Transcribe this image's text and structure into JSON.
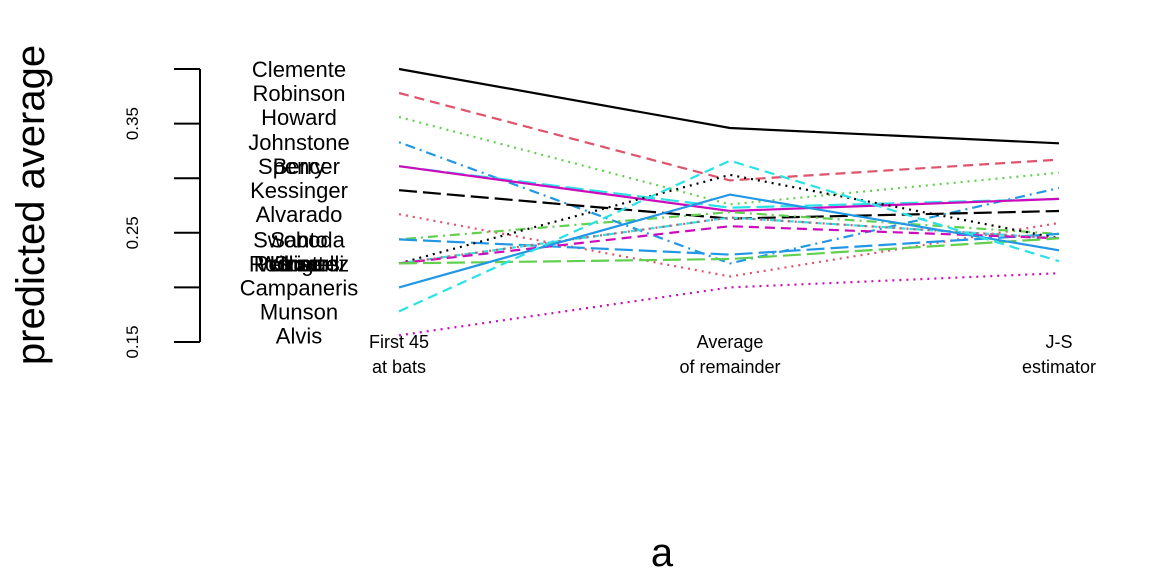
{
  "chart_data": {
    "type": "line",
    "title": "",
    "xlabel": "a",
    "ylabel": "predicted average",
    "ylim": [
      0.15,
      0.4
    ],
    "y_ticks": [
      0.15,
      0.2,
      0.25,
      0.3,
      0.35,
      0.4
    ],
    "y_tick_labels": [
      "0.15",
      "",
      "0.25",
      "",
      "0.35",
      ""
    ],
    "categories": [
      {
        "line1": "First 45",
        "line2": "at bats"
      },
      {
        "line1": "Average",
        "line2": "of remainder"
      },
      {
        "line1": "J-S",
        "line2": "estimator"
      }
    ],
    "series": [
      {
        "name": "Clemente",
        "values": [
          0.4,
          0.346,
          0.332
        ],
        "color": "#000000",
        "dash": "solid"
      },
      {
        "name": "Robinson",
        "values": [
          0.378,
          0.298,
          0.317
        ],
        "color": "#DF536B",
        "dash": "dashed"
      },
      {
        "name": "Howard",
        "values": [
          0.356,
          0.276,
          0.305
        ],
        "color": "#61D04F",
        "dash": "dotted"
      },
      {
        "name": "Johnstone",
        "values": [
          0.333,
          0.222,
          0.291
        ],
        "color": "#2297E6",
        "dash": "dotdash"
      },
      {
        "name": "Berry",
        "values": [
          0.311,
          0.273,
          0.281
        ],
        "color": "#28E2E5",
        "dash": "longdash"
      },
      {
        "name": "Spencer",
        "values": [
          0.311,
          0.27,
          0.281
        ],
        "color": "#CD0BBC",
        "dash": "solid"
      },
      {
        "name": "Kessinger",
        "values": [
          0.289,
          0.263,
          0.27
        ],
        "color": "#000000",
        "dash": "longdash"
      },
      {
        "name": "Alvarado",
        "values": [
          0.267,
          0.21,
          0.259
        ],
        "color": "#DF536B",
        "dash": "dotted"
      },
      {
        "name": "Santo",
        "values": [
          0.244,
          0.269,
          0.249
        ],
        "color": "#61D04F",
        "dash": "dotdash"
      },
      {
        "name": "Swoboda",
        "values": [
          0.244,
          0.23,
          0.249
        ],
        "color": "#2297E6",
        "dash": "longdash"
      },
      {
        "name": "Unser",
        "values": [
          0.222,
          0.264,
          0.245
        ],
        "color": "#28E2E5",
        "dash": "twodash"
      },
      {
        "name": "Williams",
        "values": [
          0.222,
          0.256,
          0.245
        ],
        "color": "#CD0BBC",
        "dash": "dashed"
      },
      {
        "name": "Scott",
        "values": [
          0.222,
          0.303,
          0.245
        ],
        "color": "#000000",
        "dash": "dotted"
      },
      {
        "name": "Petrocelli",
        "values": [
          0.222,
          0.264,
          0.245
        ],
        "color": "#DF536B",
        "dash": "dotted"
      },
      {
        "name": "Rodriguez",
        "values": [
          0.222,
          0.226,
          0.245
        ],
        "color": "#61D04F",
        "dash": "longdash"
      },
      {
        "name": "Campaneris",
        "values": [
          0.2,
          0.285,
          0.234
        ],
        "color": "#2297E6",
        "dash": "solid"
      },
      {
        "name": "Munson",
        "values": [
          0.178,
          0.316,
          0.224
        ],
        "color": "#28E2E5",
        "dash": "dashed"
      },
      {
        "name": "Alvis",
        "values": [
          0.156,
          0.2,
          0.213
        ],
        "color": "#CD0BBC",
        "dash": "dotted"
      }
    ]
  }
}
